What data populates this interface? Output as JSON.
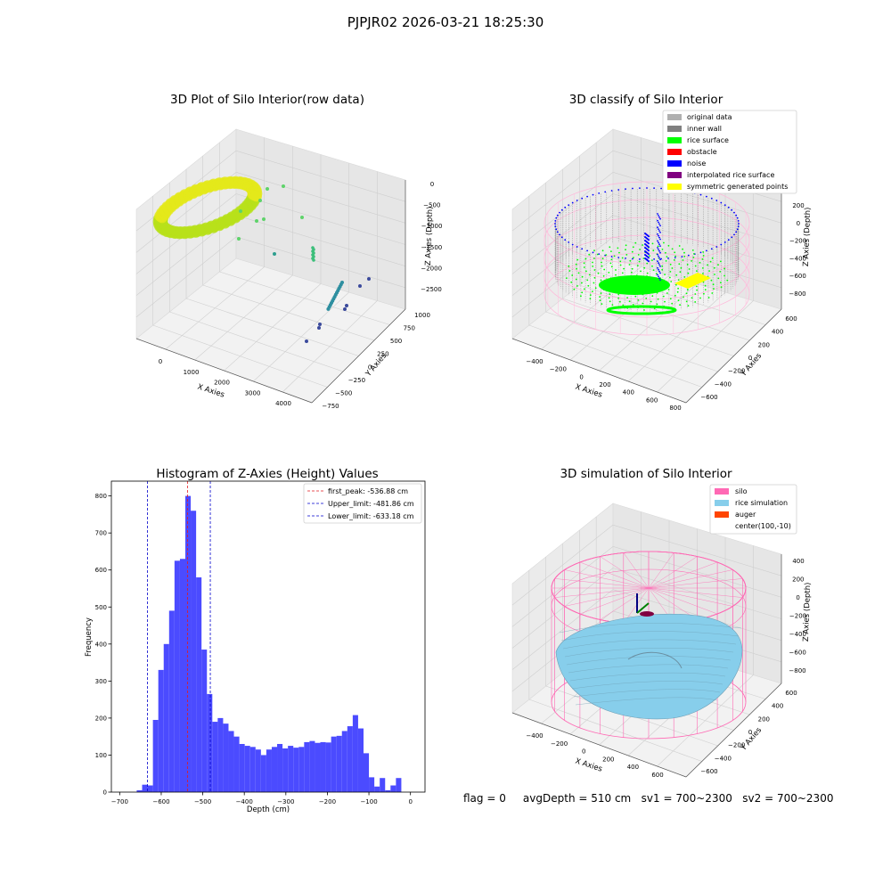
{
  "suptitle": "PJPJR02 2026-03-21 18:25:30",
  "status_line": "flag = 0     avgDepth = 510 cm   sv1 = 700~2300   sv2 = 700~2300",
  "colors": {
    "hist_bar": "#4b4bff",
    "first_peak": "#e41a1c",
    "limit": "#0000cc",
    "silo": "#ff69b4",
    "rice_simulation": "#87ceeb",
    "auger": "#ff4500",
    "original_data": "#b0b0b0",
    "inner_wall": "#808080",
    "rice_surface": "#00ff00",
    "obstacle": "#ff0000",
    "noise": "#0000ff",
    "interpolated_rice_surface": "#800080",
    "symmetric_generated_points": "#ffff00"
  },
  "panel_raw": {
    "title": "3D Plot of Silo Interior(row data)",
    "xlabel": "X Axies",
    "ylabel": "Y Axies",
    "zlabel": "Z Axies (Depth)",
    "xticks": [
      "0",
      "1000",
      "2000",
      "3000",
      "4000"
    ],
    "yticks": [
      "−750",
      "−500",
      "−250",
      "0",
      "250",
      "500",
      "750",
      "1000"
    ],
    "zticks": [
      "0",
      "−500",
      "−1000",
      "−1500",
      "−2000",
      "−2500"
    ]
  },
  "panel_classify": {
    "title": "3D classify of Silo Interior",
    "xlabel": "X Axies",
    "ylabel": "Y Axies",
    "zlabel": "Z Axies (Depth)",
    "xticks": [
      "−400",
      "−200",
      "0",
      "200",
      "400",
      "600",
      "800"
    ],
    "yticks": [
      "−600",
      "−400",
      "−200",
      "0",
      "200",
      "400",
      "600"
    ],
    "zticks": [
      "200",
      "0",
      "−200",
      "−400",
      "−600",
      "−800"
    ],
    "legend": [
      {
        "label": "original data",
        "color_key": "original_data"
      },
      {
        "label": "inner wall",
        "color_key": "inner_wall"
      },
      {
        "label": "rice surface",
        "color_key": "rice_surface"
      },
      {
        "label": "obstacle",
        "color_key": "obstacle"
      },
      {
        "label": "noise",
        "color_key": "noise"
      },
      {
        "label": "interpolated rice surface",
        "color_key": "interpolated_rice_surface"
      },
      {
        "label": "symmetric generated points",
        "color_key": "symmetric_generated_points"
      }
    ]
  },
  "panel_sim": {
    "title": "3D simulation of Silo Interior",
    "xlabel": "X Axies",
    "ylabel": "Y Axies",
    "zlabel": "Z Axies (Depth)",
    "xticks": [
      "−400",
      "−200",
      "0",
      "200",
      "400",
      "600"
    ],
    "yticks": [
      "−600",
      "−400",
      "−200",
      "0",
      "200",
      "400",
      "600"
    ],
    "zticks": [
      "400",
      "200",
      "0",
      "−200",
      "−400",
      "−600",
      "−800"
    ],
    "legend": [
      {
        "label": "silo",
        "color_key": "silo"
      },
      {
        "label": "rice simulation",
        "color_key": "rice_simulation"
      },
      {
        "label": "auger",
        "color_key": "auger"
      },
      {
        "label": "center(100,-10)",
        "color_key": ""
      }
    ]
  },
  "chart_data": {
    "type": "bar",
    "title": "Histogram of Z-Axies (Height) Values",
    "xlabel": "Depth (cm)",
    "ylabel": "Frequency",
    "xlim": [
      -720,
      35
    ],
    "ylim": [
      0,
      840
    ],
    "xticks": [
      -700,
      -600,
      -500,
      -400,
      -300,
      -200,
      -100,
      0
    ],
    "yticks": [
      0,
      100,
      200,
      300,
      400,
      500,
      600,
      700,
      800
    ],
    "bin_width": 13,
    "bins": [
      {
        "x": -659,
        "y": 5
      },
      {
        "x": -646,
        "y": 20
      },
      {
        "x": -633,
        "y": 18
      },
      {
        "x": -620,
        "y": 195
      },
      {
        "x": -607,
        "y": 330
      },
      {
        "x": -594,
        "y": 400
      },
      {
        "x": -581,
        "y": 490
      },
      {
        "x": -568,
        "y": 625
      },
      {
        "x": -555,
        "y": 630
      },
      {
        "x": -542,
        "y": 800
      },
      {
        "x": -529,
        "y": 760
      },
      {
        "x": -516,
        "y": 580
      },
      {
        "x": -503,
        "y": 385
      },
      {
        "x": -490,
        "y": 265
      },
      {
        "x": -477,
        "y": 190
      },
      {
        "x": -464,
        "y": 200
      },
      {
        "x": -451,
        "y": 185
      },
      {
        "x": -438,
        "y": 165
      },
      {
        "x": -425,
        "y": 150
      },
      {
        "x": -412,
        "y": 130
      },
      {
        "x": -399,
        "y": 125
      },
      {
        "x": -386,
        "y": 122
      },
      {
        "x": -373,
        "y": 115
      },
      {
        "x": -360,
        "y": 100
      },
      {
        "x": -347,
        "y": 115
      },
      {
        "x": -334,
        "y": 122
      },
      {
        "x": -321,
        "y": 130
      },
      {
        "x": -308,
        "y": 118
      },
      {
        "x": -295,
        "y": 125
      },
      {
        "x": -282,
        "y": 120
      },
      {
        "x": -269,
        "y": 122
      },
      {
        "x": -256,
        "y": 135
      },
      {
        "x": -243,
        "y": 138
      },
      {
        "x": -230,
        "y": 133
      },
      {
        "x": -217,
        "y": 135
      },
      {
        "x": -204,
        "y": 134
      },
      {
        "x": -191,
        "y": 150
      },
      {
        "x": -178,
        "y": 152
      },
      {
        "x": -165,
        "y": 165
      },
      {
        "x": -152,
        "y": 178
      },
      {
        "x": -139,
        "y": 208
      },
      {
        "x": -126,
        "y": 172
      },
      {
        "x": -113,
        "y": 105
      },
      {
        "x": -100,
        "y": 40
      },
      {
        "x": -87,
        "y": 15
      },
      {
        "x": -74,
        "y": 38
      },
      {
        "x": -61,
        "y": 5
      },
      {
        "x": -48,
        "y": 18
      },
      {
        "x": -35,
        "y": 38
      }
    ],
    "lines": [
      {
        "name": "first_peak: -536.88 cm",
        "x": -536.88,
        "color_key": "first_peak"
      },
      {
        "name": "Upper_limit: -481.86 cm",
        "x": -481.86,
        "color_key": "limit"
      },
      {
        "name": "Lower_limit: -633.18 cm",
        "x": -633.18,
        "color_key": "limit"
      }
    ],
    "legend": "upper-right",
    "grid": false
  }
}
